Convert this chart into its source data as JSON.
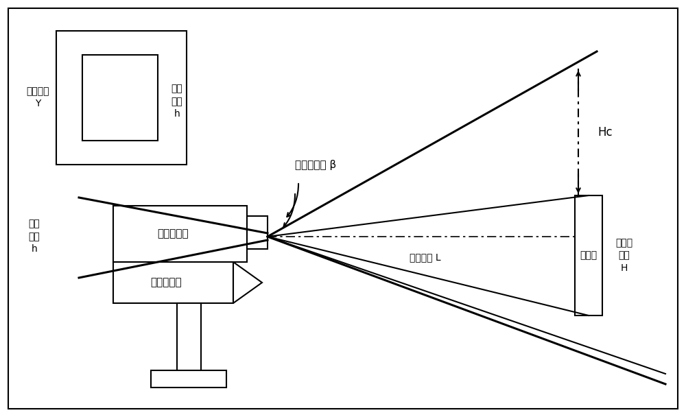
{
  "bg_color": "#ffffff",
  "lc": "#000000",
  "fig_w": 10.0,
  "fig_h": 6.08,
  "dpi": 100,
  "labels": {
    "image_length_Y": "图像长度\nY",
    "imaging_height_top": "成像\n高度\nh",
    "imaging_height_left": "成像\n高度\nh",
    "vertical_fov": "垂直视场角 β",
    "visual_sensor": "视觉传感器",
    "laser_sensor": "激光传感器",
    "laser_distance": "激光测距 L",
    "obstacle": "障碍物",
    "obstacle_height": "障碍物\n高度\nH",
    "hc": "Hc"
  }
}
